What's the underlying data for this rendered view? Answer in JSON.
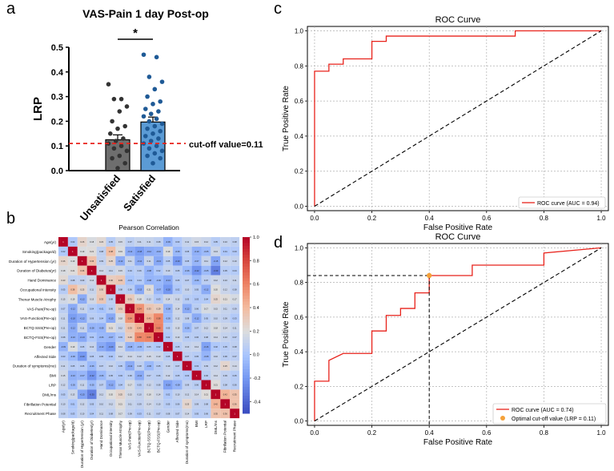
{
  "panels": {
    "a": "a",
    "b": "b",
    "c": "c",
    "d": "d"
  },
  "chart_data": [
    {
      "id": "a",
      "type": "bar",
      "title": "VAS-Pain 1 day Post-op",
      "ylabel": "LRP",
      "xlabel": "",
      "ylim": [
        0,
        0.5
      ],
      "yticks": [
        "0.0",
        "0.1",
        "0.2",
        "0.3",
        "0.4",
        "0.5"
      ],
      "categories": [
        "Unsatisfied",
        "Satisfied"
      ],
      "values": [
        0.125,
        0.197
      ],
      "sem": [
        0.02,
        0.02
      ],
      "colors": [
        "#6e6e6e",
        "#5b9bd5"
      ],
      "point_colors": [
        "#333333",
        "#1f5a96"
      ],
      "points": [
        [
          0.35,
          0.29,
          0.29,
          0.26,
          0.24,
          0.2,
          0.18,
          0.17,
          0.15,
          0.13,
          0.12,
          0.11,
          0.1,
          0.09,
          0.08,
          0.06,
          0.05,
          0.03,
          0.01
        ],
        [
          0.47,
          0.46,
          0.38,
          0.36,
          0.33,
          0.3,
          0.28,
          0.27,
          0.25,
          0.24,
          0.23,
          0.22,
          0.21,
          0.2,
          0.19,
          0.18,
          0.17,
          0.16,
          0.15,
          0.14,
          0.13,
          0.12,
          0.11,
          0.1,
          0.09,
          0.08,
          0.07,
          0.06,
          0.05,
          0.03
        ]
      ],
      "significance": "*",
      "cutoff": 0.11,
      "cutoff_label": "cut-off value=0.11"
    },
    {
      "id": "b",
      "type": "heatmap",
      "title": "Pearson Correlation",
      "labels": [
        "Age(yr)",
        "Smoking(package/d)",
        "Duration of Hypertension (yr)",
        "Duration of Diabetes(yr)",
        "Hand Dominance",
        "Occupational intensity",
        "Thenar Muscle Atrophy",
        "VAS-Pain(Pre-op)",
        "VAS-Function(Pre-op)",
        "BCTQ-SSS(Pre-op)",
        "BCTQ-FSS(Pre-op)",
        "Gender",
        "Affected Side",
        "Duration of symptoms(mo)",
        "BMI",
        "LRP",
        "DML/ms",
        "Fibrillation Potential",
        "Recruitment Phase"
      ],
      "colorbar_ticks": [
        "1.0",
        "0.8",
        "0.6",
        "0.4",
        "0.2",
        "0.0",
        "-0.2",
        "-0.4"
      ],
      "vmin": -0.5,
      "vmax": 1.0,
      "matrix": [
        [
          1,
          0.02,
          0.26,
          0.18,
          0.23,
          0.05,
          0.15,
          0.07,
          0.11,
          0.11,
          0.08,
          -0.09,
          0.03,
          0.11,
          0.15,
          0.12,
          0.05,
          0.1,
          0.08
        ],
        [
          0.02,
          1,
          0.19,
          0.21,
          0.08,
          0.38,
          0.19,
          -0.12,
          -0.18,
          -0.12,
          -0.1,
          0.19,
          -0.06,
          0.05,
          -0.1,
          -0.05,
          0.13,
          0.01,
          0.03
        ],
        [
          0.26,
          0.19,
          1,
          0.36,
          0.09,
          0.25,
          -0.12,
          0.11,
          -0.12,
          0.11,
          -0.13,
          0.05,
          -0.2,
          0.05,
          -0.07,
          0.11,
          -0.15,
          0.12,
          0.1
        ],
        [
          0.18,
          0.21,
          0.36,
          1,
          0.14,
          0.11,
          0.15,
          0.04,
          0.06,
          -0.08,
          0.02,
          0.1,
          0.05,
          -0.06,
          -0.22,
          -0.05,
          -0.3,
          0.05,
          0.04
        ],
        [
          0.23,
          0.08,
          0.09,
          0.14,
          1,
          0.3,
          0.33,
          -0.01,
          0.04,
          -0.08,
          -0.06,
          -0.13,
          0.05,
          0.07,
          -0.06,
          0.07,
          0.12,
          0.1,
          0.11
        ],
        [
          0.05,
          0.38,
          0.25,
          0.11,
          0.3,
          1,
          0.08,
          0.06,
          -0.13,
          0.21,
          -0.07,
          -0.2,
          0.02,
          0.1,
          0.05,
          -0.12,
          0.2,
          0.12,
          0.08
        ],
        [
          0.15,
          0.19,
          -0.12,
          0.15,
          0.33,
          0.08,
          1,
          0.31,
          0.18,
          0.12,
          0.03,
          0.14,
          0.12,
          0.05,
          0.03,
          0.04,
          0.25,
          0.21,
          0.17
        ],
        [
          0.07,
          -0.12,
          0.11,
          0.04,
          -0.01,
          0.06,
          0.31,
          1,
          0.54,
          0.33,
          0.29,
          -0.08,
          0.14,
          -0.12,
          0.06,
          0.17,
          0.15,
          0.11,
          0.09
        ],
        [
          0.11,
          -0.18,
          -0.12,
          0.06,
          0.04,
          -0.13,
          0.18,
          0.54,
          1,
          0.43,
          0.58,
          -0.05,
          0.12,
          0.08,
          -0.12,
          0.05,
          0.1,
          0.09,
          0.03
        ],
        [
          0.11,
          -0.12,
          0.11,
          -0.08,
          -0.08,
          0.21,
          0.12,
          0.33,
          0.43,
          1,
          0.6,
          0.05,
          0.15,
          -0.06,
          0.07,
          0.12,
          0.18,
          0.14,
          0.11
        ],
        [
          0.08,
          -0.1,
          -0.13,
          0.02,
          -0.06,
          -0.07,
          0.03,
          0.29,
          0.58,
          0.6,
          1,
          0.02,
          0.13,
          0.05,
          0.06,
          0.08,
          0.14,
          0.1,
          0.07
        ],
        [
          -0.09,
          0.19,
          0.05,
          0.1,
          -0.13,
          -0.2,
          0.14,
          -0.08,
          -0.05,
          0.05,
          0.02,
          1,
          0.05,
          0.1,
          0.12,
          -0.16,
          0.02,
          0.05,
          0.08
        ],
        [
          0.03,
          -0.06,
          -0.2,
          0.05,
          0.05,
          0.02,
          0.12,
          0.14,
          0.12,
          0.15,
          0.13,
          0.05,
          1,
          0.07,
          0.05,
          -0.08,
          0.1,
          0.06,
          0.07
        ],
        [
          0.11,
          0.05,
          0.05,
          -0.06,
          0.07,
          0.1,
          0.05,
          -0.12,
          0.08,
          -0.06,
          0.05,
          0.1,
          0.07,
          1,
          0.03,
          0.09,
          0.12,
          0.25,
          0.14
        ],
        [
          0.15,
          -0.1,
          -0.07,
          -0.22,
          -0.06,
          0.05,
          0.03,
          0.06,
          -0.12,
          0.07,
          0.06,
          0.12,
          0.05,
          0.03,
          1,
          0.06,
          0.14,
          0.09,
          0.05
        ],
        [
          0.12,
          -0.05,
          0.11,
          -0.05,
          0.07,
          -0.12,
          0.04,
          0.17,
          0.05,
          0.12,
          0.08,
          -0.16,
          -0.08,
          0.09,
          0.06,
          1,
          0.21,
          0.08,
          0.06
        ],
        [
          0.05,
          0.13,
          -0.15,
          -0.3,
          0.12,
          0.2,
          0.25,
          0.15,
          0.1,
          0.18,
          0.14,
          0.02,
          0.1,
          0.12,
          0.14,
          0.21,
          1,
          0.42,
          0.35
        ],
        [
          0.1,
          0.01,
          0.12,
          0.05,
          0.1,
          0.12,
          0.21,
          0.11,
          0.09,
          0.14,
          0.1,
          0.05,
          0.06,
          0.25,
          0.09,
          0.08,
          0.42,
          1,
          0.36
        ],
        [
          0.08,
          0.03,
          0.1,
          0.04,
          0.11,
          0.08,
          0.17,
          0.09,
          0.03,
          0.11,
          0.07,
          0.08,
          0.07,
          0.14,
          0.05,
          0.06,
          0.35,
          0.36,
          1
        ]
      ]
    },
    {
      "id": "c",
      "type": "line",
      "title": "ROC Curve",
      "xlabel": "False Positive Rate",
      "ylabel": "True Positive Rate",
      "xlim": [
        0,
        1
      ],
      "ylim": [
        0,
        1
      ],
      "ticks": [
        "0.0",
        "0.2",
        "0.4",
        "0.6",
        "0.8",
        "1.0"
      ],
      "series": [
        {
          "name": "ROC curve (AUC = 0.94)",
          "color": "#e8221b",
          "x": [
            0,
            0,
            0,
            0.05,
            0.05,
            0.1,
            0.1,
            0.2,
            0.2,
            0.25,
            0.25,
            0.7,
            0.7,
            1.0
          ],
          "y": [
            0,
            0.74,
            0.77,
            0.77,
            0.81,
            0.81,
            0.84,
            0.84,
            0.94,
            0.94,
            0.97,
            0.97,
            1.0,
            1.0
          ]
        },
        {
          "name": "",
          "color": "#000000",
          "dashed": true,
          "x": [
            0,
            1
          ],
          "y": [
            0,
            1
          ]
        }
      ],
      "legend": "ROC curve (AUC = 0.94)"
    },
    {
      "id": "d",
      "type": "line",
      "title": "ROC Curve",
      "xlabel": "False Positive Rate",
      "ylabel": "True Positive Rate",
      "xlim": [
        0,
        1
      ],
      "ylim": [
        0,
        1
      ],
      "ticks": [
        "0.0",
        "0.2",
        "0.4",
        "0.6",
        "0.8",
        "1.0"
      ],
      "series": [
        {
          "name": "ROC curve (AUC = 0.74)",
          "color": "#e8221b",
          "x": [
            0,
            0,
            0.05,
            0.05,
            0.1,
            0.1,
            0.2,
            0.2,
            0.25,
            0.25,
            0.3,
            0.3,
            0.35,
            0.35,
            0.4,
            0.4,
            0.55,
            0.55,
            0.8,
            0.8,
            1.0
          ],
          "y": [
            0,
            0.23,
            0.23,
            0.35,
            0.39,
            0.39,
            0.39,
            0.52,
            0.52,
            0.61,
            0.61,
            0.65,
            0.65,
            0.74,
            0.74,
            0.84,
            0.84,
            0.9,
            0.9,
            0.97,
            1.0
          ]
        },
        {
          "name": "",
          "color": "#000000",
          "dashed": true,
          "x": [
            0,
            1
          ],
          "y": [
            0,
            1
          ]
        }
      ],
      "optimal_point": {
        "x": 0.4,
        "y": 0.84,
        "color": "#f5a13a"
      },
      "legend": "ROC curve (AUC = 0.74)",
      "legend2": "Optimal cut-off value (LRP = 0.11)"
    }
  ]
}
